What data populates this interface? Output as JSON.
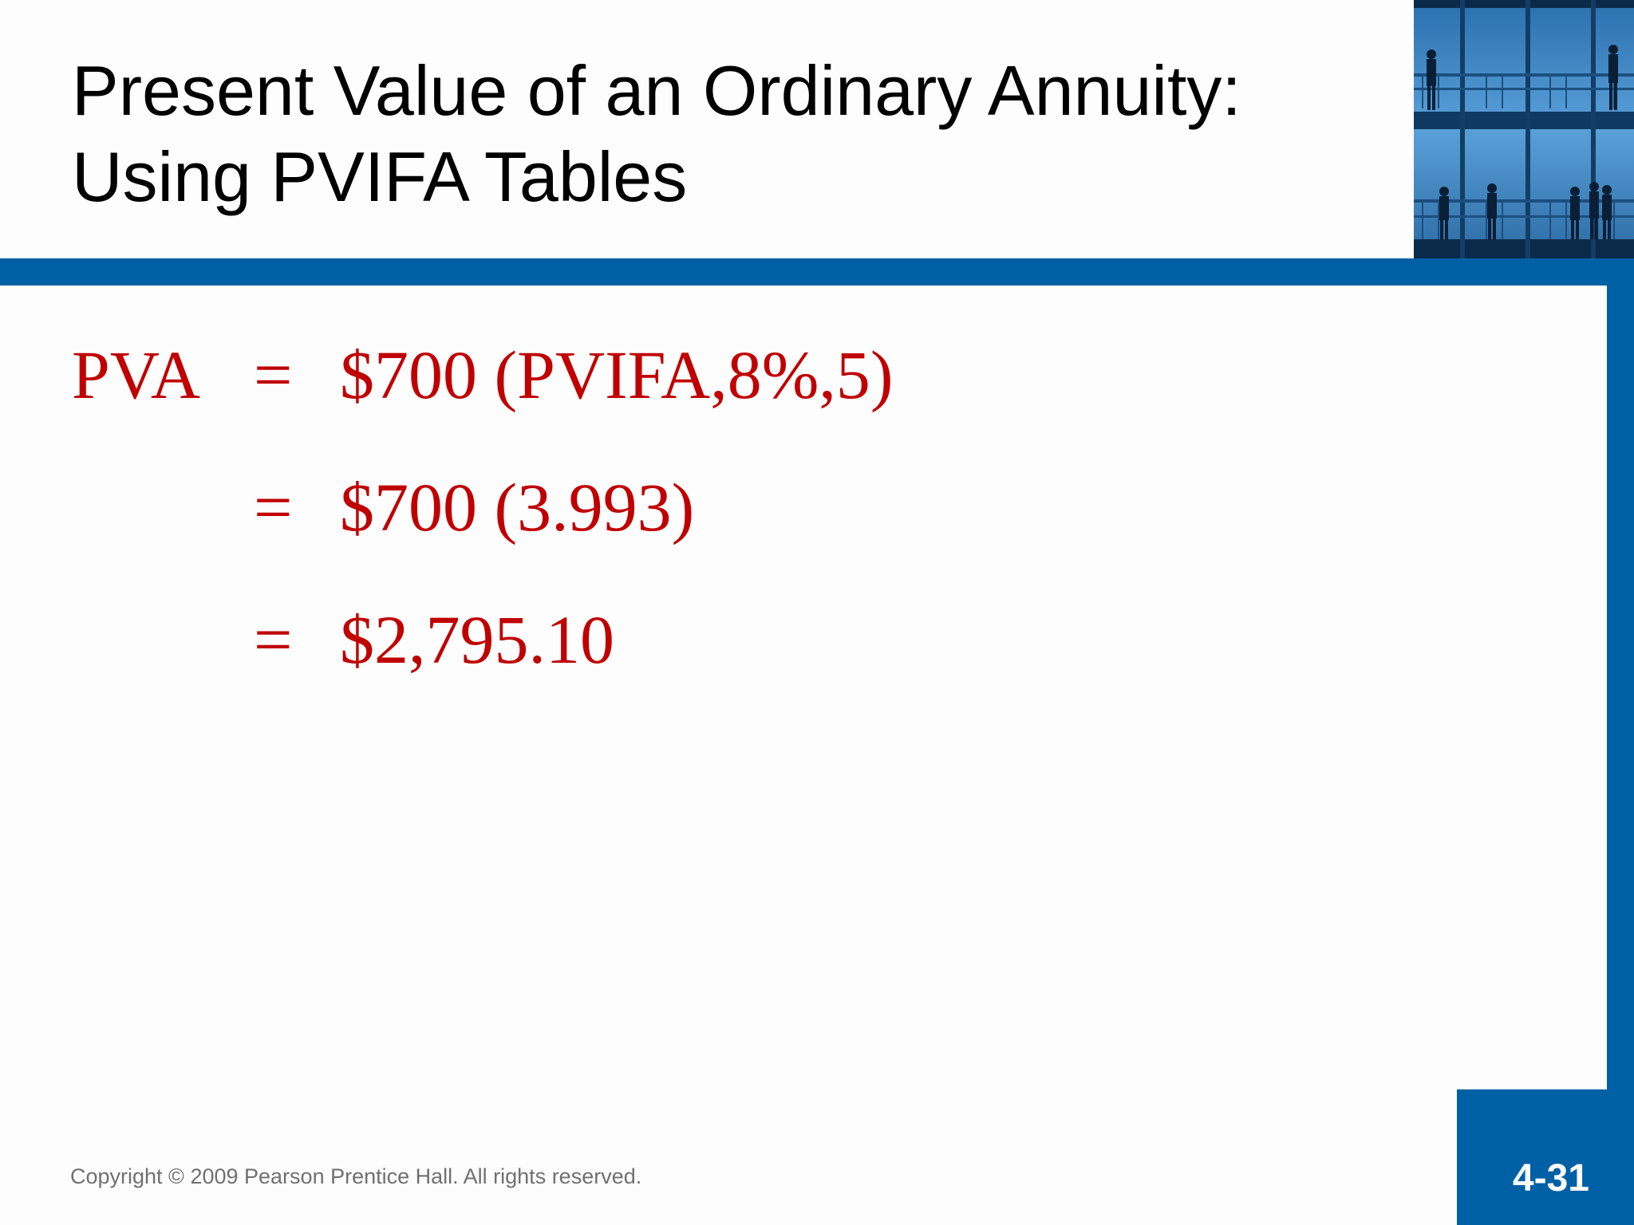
{
  "slide": {
    "title_line1": "Present Value of an Ordinary Annuity:",
    "title_line2": "Using PVIFA Tables",
    "equations": [
      {
        "lhs": "PVA",
        "sign": "=",
        "rhs": "$700 (PVIFA,8%,5)"
      },
      {
        "lhs": "",
        "sign": "=",
        "rhs": "$700 (3.993)"
      },
      {
        "lhs": "",
        "sign": "=",
        "rhs": "$2,795.10"
      }
    ],
    "copyright": "Copyright © 2009 Pearson Prentice Hall. All rights reserved.",
    "slide_number": "4-31",
    "colors": {
      "accent_blue": "#0060a5",
      "equation_red": "#c00000"
    },
    "header_image": "office-building-people-photo"
  }
}
